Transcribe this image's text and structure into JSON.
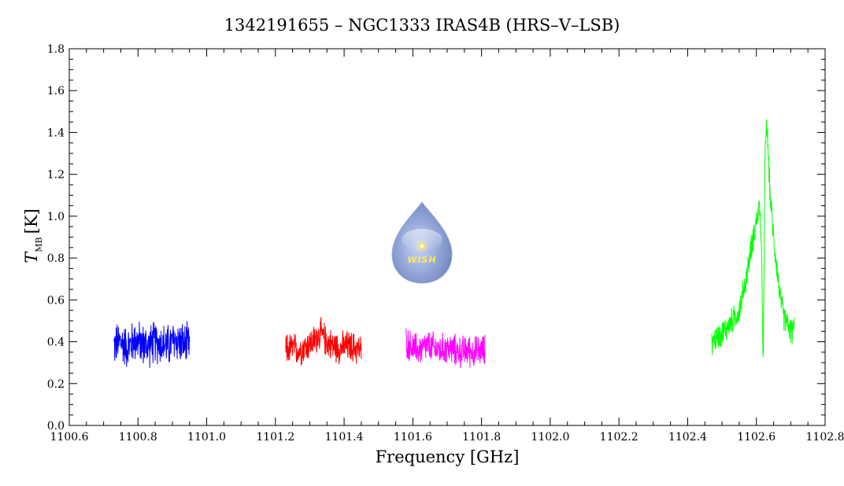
{
  "chart_data": {
    "type": "line",
    "title": "1342191655 – NGC1333 IRAS4B (HRS–V–LSB)",
    "xlabel": "Frequency [GHz]",
    "ylabel_main": "T",
    "ylabel_sub": "MB",
    "ylabel_unit": "[K]",
    "xlim": [
      1100.6,
      1102.8
    ],
    "ylim": [
      0.0,
      1.8
    ],
    "x_ticks": [
      "1100.6",
      "1100.8",
      "1101.0",
      "1101.2",
      "1101.4",
      "1101.6",
      "1101.8",
      "1102.0",
      "1102.2",
      "1102.4",
      "1102.6",
      "1102.8"
    ],
    "y_ticks": [
      "0.0",
      "0.2",
      "0.4",
      "0.6",
      "0.8",
      "1.0",
      "1.2",
      "1.4",
      "1.6",
      "1.8"
    ],
    "grid": false,
    "series": [
      {
        "color": "#0000ff",
        "x": [
          1100.73,
          1100.75,
          1100.77,
          1100.79,
          1100.81,
          1100.83,
          1100.85,
          1100.87,
          1100.89,
          1100.91,
          1100.93,
          1100.95
        ],
        "y": [
          0.38,
          0.4,
          0.37,
          0.41,
          0.39,
          0.38,
          0.4,
          0.39,
          0.38,
          0.41,
          0.39,
          0.38
        ],
        "noise": 0.08
      },
      {
        "color": "#ff0000",
        "x": [
          1101.23,
          1101.25,
          1101.27,
          1101.29,
          1101.31,
          1101.33,
          1101.35,
          1101.37,
          1101.39,
          1101.41,
          1101.43,
          1101.45
        ],
        "y": [
          0.36,
          0.37,
          0.36,
          0.38,
          0.4,
          0.44,
          0.4,
          0.38,
          0.37,
          0.38,
          0.37,
          0.36
        ],
        "noise": 0.06
      },
      {
        "color": "#ff00ff",
        "x": [
          1101.58,
          1101.6,
          1101.62,
          1101.64,
          1101.66,
          1101.68,
          1101.7,
          1101.72,
          1101.74,
          1101.76,
          1101.78,
          1101.81
        ],
        "y": [
          0.4,
          0.37,
          0.36,
          0.38,
          0.37,
          0.36,
          0.37,
          0.36,
          0.35,
          0.36,
          0.35,
          0.36
        ],
        "noise": 0.06
      },
      {
        "color": "#00ff00",
        "x": [
          1102.47,
          1102.5,
          1102.53,
          1102.55,
          1102.57,
          1102.585,
          1102.6,
          1102.61,
          1102.615,
          1102.62,
          1102.625,
          1102.63,
          1102.64,
          1102.65,
          1102.66,
          1102.67,
          1102.68,
          1102.7,
          1102.71
        ],
        "y": [
          0.4,
          0.44,
          0.5,
          0.55,
          0.7,
          0.85,
          0.98,
          1.05,
          0.8,
          0.3,
          1.3,
          1.45,
          1.1,
          0.9,
          0.75,
          0.6,
          0.52,
          0.45,
          0.46
        ],
        "noise": 0.05
      }
    ]
  },
  "logo": {
    "text": "WISH"
  }
}
